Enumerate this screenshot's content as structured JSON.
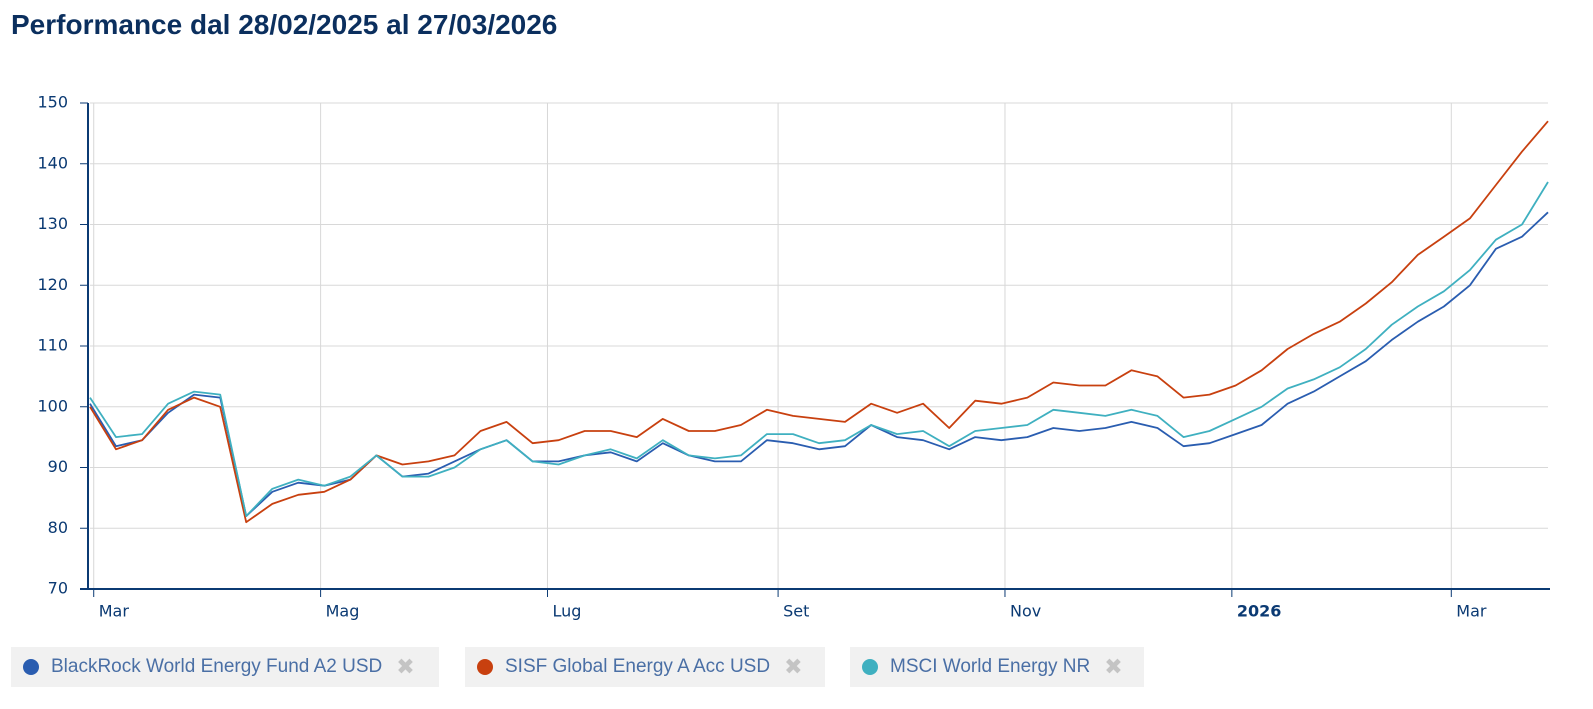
{
  "chart_data": {
    "type": "line",
    "title": "Performance dal 28/02/2025 al 27/03/2026",
    "x": [
      "2025-02-28",
      "2025-03-07",
      "2025-03-14",
      "2025-03-21",
      "2025-03-28",
      "2025-04-04",
      "2025-04-11",
      "2025-04-18",
      "2025-04-25",
      "2025-05-02",
      "2025-05-09",
      "2025-05-16",
      "2025-05-23",
      "2025-05-30",
      "2025-06-06",
      "2025-06-13",
      "2025-06-20",
      "2025-06-27",
      "2025-07-04",
      "2025-07-11",
      "2025-07-18",
      "2025-07-25",
      "2025-08-01",
      "2025-08-08",
      "2025-08-15",
      "2025-08-22",
      "2025-08-29",
      "2025-09-05",
      "2025-09-12",
      "2025-09-19",
      "2025-09-26",
      "2025-10-03",
      "2025-10-10",
      "2025-10-17",
      "2025-10-24",
      "2025-10-31",
      "2025-11-07",
      "2025-11-14",
      "2025-11-21",
      "2025-11-28",
      "2025-12-05",
      "2025-12-12",
      "2025-12-19",
      "2025-12-26",
      "2026-01-02",
      "2026-01-09",
      "2026-01-16",
      "2026-01-23",
      "2026-01-30",
      "2026-02-06",
      "2026-02-13",
      "2026-02-20",
      "2026-02-27",
      "2026-03-06",
      "2026-03-13",
      "2026-03-20",
      "2026-03-27"
    ],
    "series": [
      {
        "name": "BlackRock World Energy Fund A2 USD",
        "color": "#2a5db0",
        "values": [
          100.5,
          93.5,
          94.5,
          99,
          102,
          101.5,
          82,
          86,
          87.5,
          87,
          88,
          92,
          88.5,
          89,
          91,
          93,
          94.5,
          91,
          91,
          92,
          92.5,
          91,
          94,
          92,
          91,
          91,
          94.5,
          94,
          93,
          93.5,
          97,
          95,
          94.5,
          93,
          95,
          94.5,
          95,
          96.5,
          96,
          96.5,
          97.5,
          96.5,
          93.5,
          94,
          95.5,
          97,
          100.5,
          102.5,
          105,
          107.5,
          111,
          114,
          116.5,
          120,
          126,
          128,
          132
        ]
      },
      {
        "name": "SISF Global Energy A Acc USD",
        "color": "#c8400f",
        "values": [
          100,
          93,
          94.5,
          99.5,
          101.5,
          100,
          81,
          84,
          85.5,
          86,
          88,
          92,
          90.5,
          91,
          92,
          96,
          97.5,
          94,
          94.5,
          96,
          96,
          95,
          98,
          96,
          96,
          97,
          99.5,
          98.5,
          98,
          97.5,
          100.5,
          99,
          100.5,
          96.5,
          101,
          100.5,
          101.5,
          104,
          103.5,
          103.5,
          106,
          105,
          101.5,
          102,
          103.5,
          106,
          109.5,
          112,
          114,
          117,
          120.5,
          125,
          128,
          131,
          136.5,
          142,
          147
        ]
      },
      {
        "name": "MSCI World Energy NR",
        "color": "#3fb0c0",
        "values": [
          101.5,
          95,
          95.5,
          100.5,
          102.5,
          102,
          82,
          86.5,
          88,
          87,
          88.5,
          92,
          88.5,
          88.5,
          90,
          93,
          94.5,
          91,
          90.5,
          92,
          93,
          91.5,
          94.5,
          92,
          91.5,
          92,
          95.5,
          95.5,
          94,
          94.5,
          97,
          95.5,
          96,
          93.5,
          96,
          96.5,
          97,
          99.5,
          99,
          98.5,
          99.5,
          98.5,
          95,
          96,
          98,
          100,
          103,
          104.5,
          106.5,
          109.5,
          113.5,
          116.5,
          119,
          122.5,
          127.5,
          130,
          137
        ]
      }
    ],
    "xlim": [
      "2025-02-28",
      "2026-03-27"
    ],
    "xticks": [
      {
        "value": "2025-03-01",
        "label": "Mar"
      },
      {
        "value": "2025-05-01",
        "label": "Mag"
      },
      {
        "value": "2025-07-01",
        "label": "Lug"
      },
      {
        "value": "2025-09-01",
        "label": "Set"
      },
      {
        "value": "2025-11-01",
        "label": "Nov"
      },
      {
        "value": "2026-01-01",
        "label": "2026",
        "bold": true
      },
      {
        "value": "2026-03-01",
        "label": "Mar"
      }
    ],
    "ylim": [
      70,
      150
    ],
    "yticks": [
      70,
      80,
      90,
      100,
      110,
      120,
      130,
      140,
      150
    ],
    "grid": true,
    "legend": "bottom"
  }
}
